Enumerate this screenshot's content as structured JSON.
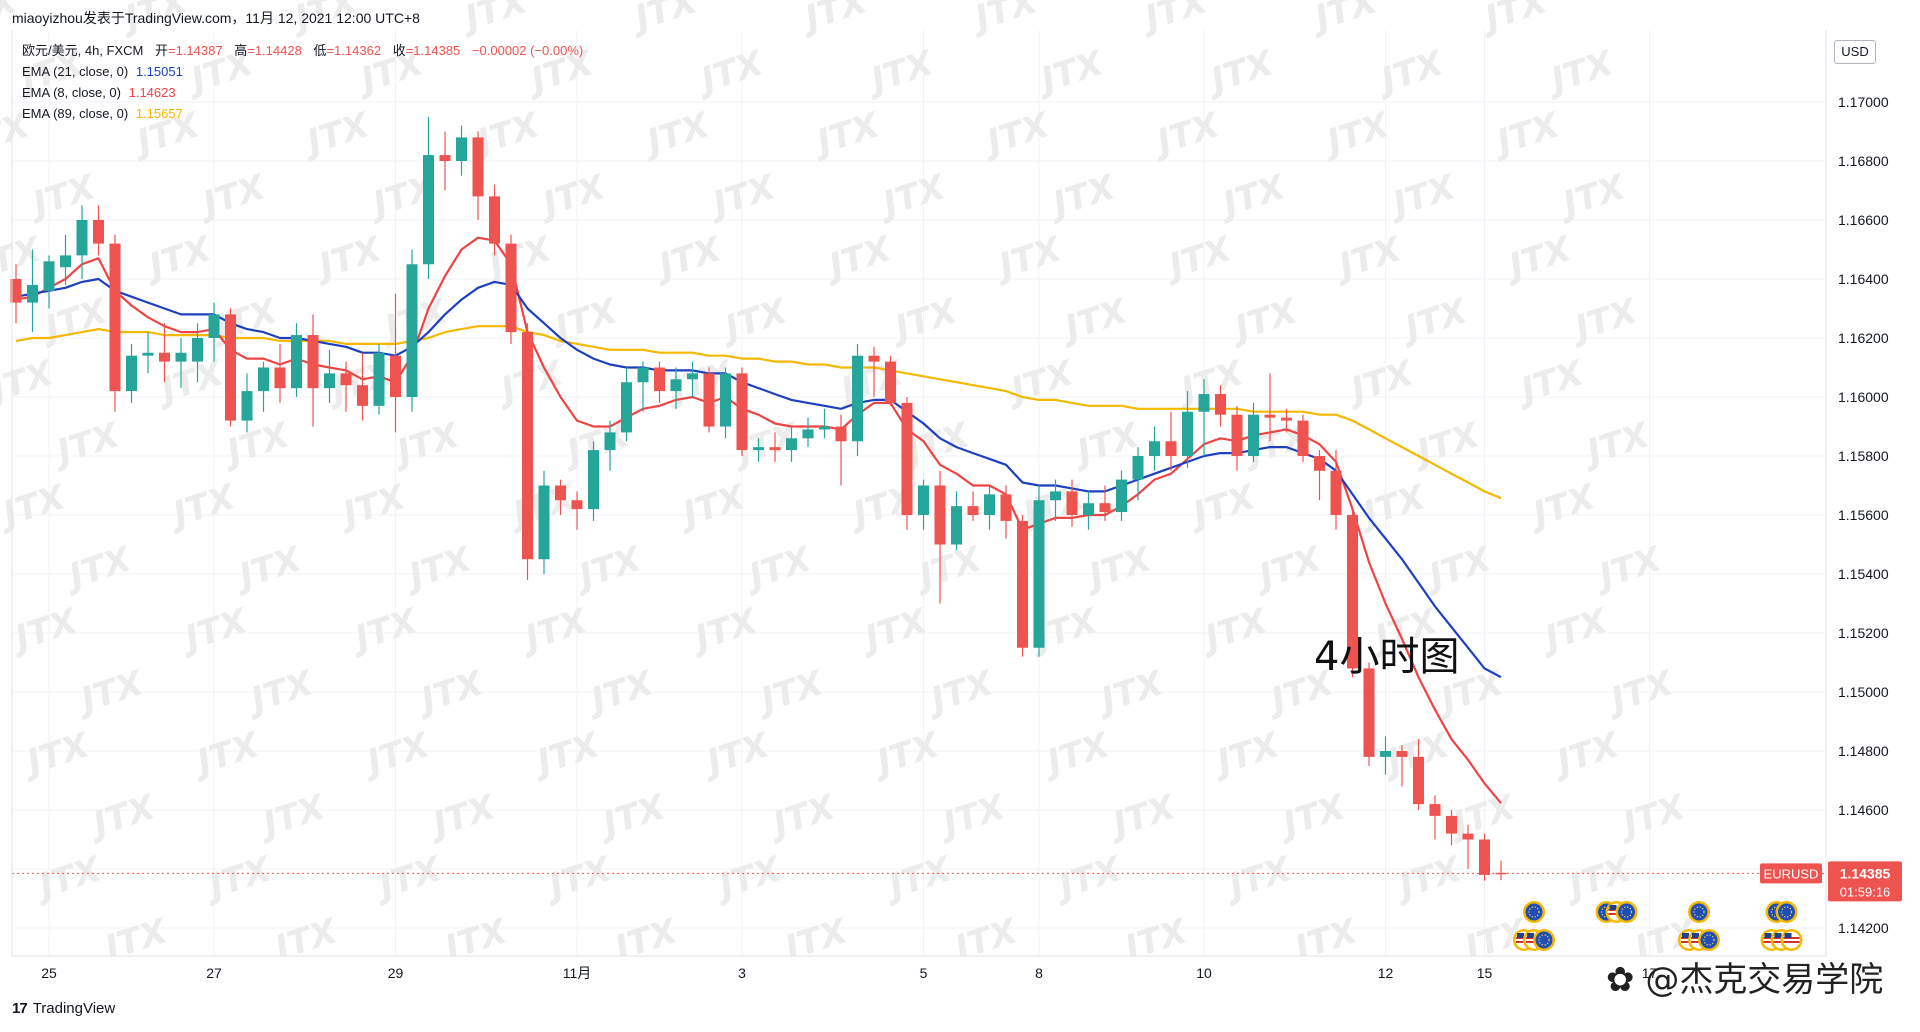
{
  "header": {
    "source_line": "miaoyizhou发表于TradingView.com，11月 12, 2021 12:00 UTC+8"
  },
  "legend": {
    "symbol_line": "欧元/美元, 4h, FXCM",
    "ohlc": [
      {
        "key": "开",
        "value": "=1.14387"
      },
      {
        "key": "高",
        "value": "=1.14428"
      },
      {
        "key": "低",
        "value": "=1.14362"
      },
      {
        "key": "收",
        "value": "=1.14385"
      }
    ],
    "change": "−0.00002 (−0.00%)",
    "ema": [
      {
        "label": "EMA (21, close, 0)",
        "value": "1.15051",
        "color": "#1e3fbf"
      },
      {
        "label": "EMA (8, close, 0)",
        "value": "1.14623",
        "color": "#ef4444"
      },
      {
        "label": "EMA (89, close, 0)",
        "value": "1.15657",
        "color": "#f5b800"
      }
    ]
  },
  "price_axis": {
    "currency": "USD",
    "current_symbol": "EURUSD",
    "current_price": "1.14385",
    "countdown": "01:59:16"
  },
  "annotation": "4小时图",
  "branding": {
    "logo_text": "TradingView",
    "weibo": "@杰克交易学院"
  },
  "watermark_text": "JTX",
  "colors": {
    "up": "#26a69a",
    "down": "#ef5350",
    "ema21": "#1e3fbf",
    "ema8": "#ef4444",
    "ema89": "#f5b800",
    "grid": "#f0f3fa",
    "price_tag": "#ef5350"
  },
  "chart_data": {
    "type": "candlestick",
    "title": "欧元/美元, 4h, FXCM",
    "ylim": [
      1.1412,
      1.17
    ],
    "y_ticks": [
      "1.17000",
      "1.16800",
      "1.16600",
      "1.16400",
      "1.16200",
      "1.16000",
      "1.15800",
      "1.15600",
      "1.15400",
      "1.15200",
      "1.15000",
      "1.14800",
      "1.14600",
      "1.14400",
      "1.14200"
    ],
    "x_ticks": [
      {
        "label": "25",
        "bar": 2
      },
      {
        "label": "27",
        "bar": 12
      },
      {
        "label": "29",
        "bar": 23
      },
      {
        "label": "11月",
        "bar": 34
      },
      {
        "label": "3",
        "bar": 44
      },
      {
        "label": "5",
        "bar": 55
      },
      {
        "label": "8",
        "bar": 62
      },
      {
        "label": "10",
        "bar": 72
      },
      {
        "label": "12",
        "bar": 83
      },
      {
        "label": "15",
        "bar": 89
      },
      {
        "label": "17",
        "bar": 99
      }
    ],
    "candles": [
      [
        1.164,
        1.1645,
        1.1625,
        1.1632
      ],
      [
        1.1632,
        1.165,
        1.1622,
        1.1638
      ],
      [
        1.1636,
        1.1648,
        1.163,
        1.1646
      ],
      [
        1.1644,
        1.1655,
        1.1638,
        1.1648
      ],
      [
        1.1648,
        1.1665,
        1.164,
        1.166
      ],
      [
        1.166,
        1.1665,
        1.1648,
        1.1652
      ],
      [
        1.1652,
        1.1655,
        1.1595,
        1.1602
      ],
      [
        1.1602,
        1.1618,
        1.1598,
        1.1614
      ],
      [
        1.1614,
        1.1622,
        1.1608,
        1.1615
      ],
      [
        1.1615,
        1.1625,
        1.1605,
        1.1612
      ],
      [
        1.1612,
        1.162,
        1.1603,
        1.1615
      ],
      [
        1.1612,
        1.1625,
        1.1605,
        1.162
      ],
      [
        1.162,
        1.1632,
        1.1612,
        1.1628
      ],
      [
        1.1628,
        1.163,
        1.159,
        1.1592
      ],
      [
        1.1592,
        1.1608,
        1.1588,
        1.1602
      ],
      [
        1.1602,
        1.1612,
        1.1595,
        1.161
      ],
      [
        1.161,
        1.1618,
        1.1598,
        1.1603
      ],
      [
        1.1603,
        1.1625,
        1.16,
        1.1621
      ],
      [
        1.1621,
        1.1628,
        1.159,
        1.1603
      ],
      [
        1.1603,
        1.1616,
        1.1598,
        1.1608
      ],
      [
        1.1608,
        1.1612,
        1.1595,
        1.1604
      ],
      [
        1.1604,
        1.1615,
        1.1592,
        1.1597
      ],
      [
        1.1597,
        1.1618,
        1.1594,
        1.1615
      ],
      [
        1.1614,
        1.1635,
        1.1588,
        1.16
      ],
      [
        1.16,
        1.165,
        1.1595,
        1.1645
      ],
      [
        1.1645,
        1.1695,
        1.164,
        1.1682
      ],
      [
        1.1682,
        1.169,
        1.167,
        1.168
      ],
      [
        1.168,
        1.1692,
        1.1675,
        1.1688
      ],
      [
        1.1688,
        1.169,
        1.166,
        1.1668
      ],
      [
        1.1668,
        1.1672,
        1.1648,
        1.1652
      ],
      [
        1.1652,
        1.1655,
        1.1618,
        1.1622
      ],
      [
        1.1622,
        1.1625,
        1.1538,
        1.1545
      ],
      [
        1.1545,
        1.1575,
        1.154,
        1.157
      ],
      [
        1.157,
        1.1572,
        1.156,
        1.1565
      ],
      [
        1.1565,
        1.1568,
        1.1555,
        1.1562
      ],
      [
        1.1562,
        1.1585,
        1.1558,
        1.1582
      ],
      [
        1.1582,
        1.1592,
        1.1575,
        1.1588
      ],
      [
        1.1588,
        1.161,
        1.1585,
        1.1605
      ],
      [
        1.1605,
        1.1612,
        1.1595,
        1.161
      ],
      [
        1.161,
        1.1612,
        1.1598,
        1.1602
      ],
      [
        1.1602,
        1.161,
        1.1596,
        1.1606
      ],
      [
        1.1606,
        1.1612,
        1.16,
        1.1608
      ],
      [
        1.1608,
        1.161,
        1.1588,
        1.159
      ],
      [
        1.159,
        1.161,
        1.1586,
        1.1608
      ],
      [
        1.1608,
        1.161,
        1.158,
        1.1582
      ],
      [
        1.1582,
        1.1586,
        1.1578,
        1.1583
      ],
      [
        1.1583,
        1.1588,
        1.1578,
        1.1582
      ],
      [
        1.1582,
        1.159,
        1.1578,
        1.1586
      ],
      [
        1.1586,
        1.1593,
        1.1583,
        1.1589
      ],
      [
        1.1589,
        1.1596,
        1.1586,
        1.159
      ],
      [
        1.159,
        1.1594,
        1.157,
        1.1585
      ],
      [
        1.1585,
        1.1618,
        1.158,
        1.1614
      ],
      [
        1.1614,
        1.1617,
        1.16,
        1.1612
      ],
      [
        1.1612,
        1.1614,
        1.1597,
        1.1598
      ],
      [
        1.1598,
        1.16,
        1.1555,
        1.156
      ],
      [
        1.156,
        1.1572,
        1.1555,
        1.157
      ],
      [
        1.157,
        1.1575,
        1.153,
        1.155
      ],
      [
        1.155,
        1.1568,
        1.1548,
        1.1563
      ],
      [
        1.1563,
        1.1568,
        1.1558,
        1.156
      ],
      [
        1.156,
        1.157,
        1.1555,
        1.1567
      ],
      [
        1.1567,
        1.157,
        1.1552,
        1.1558
      ],
      [
        1.1558,
        1.156,
        1.1512,
        1.1515
      ],
      [
        1.1515,
        1.157,
        1.1512,
        1.1565
      ],
      [
        1.1565,
        1.1572,
        1.1558,
        1.1568
      ],
      [
        1.1568,
        1.1572,
        1.1556,
        1.156
      ],
      [
        1.156,
        1.1568,
        1.1555,
        1.1564
      ],
      [
        1.1564,
        1.157,
        1.1558,
        1.1561
      ],
      [
        1.1561,
        1.1575,
        1.1558,
        1.1572
      ],
      [
        1.1572,
        1.1583,
        1.1565,
        1.158
      ],
      [
        1.158,
        1.159,
        1.1575,
        1.1585
      ],
      [
        1.1585,
        1.1595,
        1.1575,
        1.158
      ],
      [
        1.158,
        1.1602,
        1.1576,
        1.1595
      ],
      [
        1.1595,
        1.1606,
        1.158,
        1.1601
      ],
      [
        1.1601,
        1.1604,
        1.159,
        1.1594
      ],
      [
        1.1594,
        1.1597,
        1.1575,
        1.158
      ],
      [
        1.158,
        1.1598,
        1.1578,
        1.1594
      ],
      [
        1.1594,
        1.1608,
        1.1585,
        1.1593
      ],
      [
        1.1593,
        1.1596,
        1.1588,
        1.1592
      ],
      [
        1.1592,
        1.1594,
        1.1578,
        1.158
      ],
      [
        1.158,
        1.1582,
        1.1565,
        1.1575
      ],
      [
        1.1575,
        1.1582,
        1.1555,
        1.156
      ],
      [
        1.156,
        1.1562,
        1.1505,
        1.1508
      ],
      [
        1.1508,
        1.151,
        1.1475,
        1.1478
      ],
      [
        1.1478,
        1.1485,
        1.1472,
        1.148
      ],
      [
        1.148,
        1.1482,
        1.1468,
        1.1478
      ],
      [
        1.1478,
        1.1484,
        1.146,
        1.1462
      ],
      [
        1.1462,
        1.1465,
        1.145,
        1.1458
      ],
      [
        1.1458,
        1.146,
        1.1448,
        1.1452
      ],
      [
        1.1452,
        1.1455,
        1.144,
        1.145
      ],
      [
        1.145,
        1.1452,
        1.1436,
        1.1438
      ],
      [
        1.14387,
        1.14428,
        1.14362,
        1.14385
      ]
    ],
    "series": [
      {
        "name": "EMA (21, close, 0)",
        "color": "#1e3fbf",
        "start_bar": 0,
        "values": [
          1.1634,
          1.1635,
          1.1636,
          1.1637,
          1.1639,
          1.164,
          1.1636,
          1.1634,
          1.1632,
          1.163,
          1.1628,
          1.1628,
          1.1628,
          1.1625,
          1.1623,
          1.1622,
          1.162,
          1.162,
          1.1619,
          1.1618,
          1.1617,
          1.1615,
          1.1615,
          1.1614,
          1.1617,
          1.1622,
          1.1628,
          1.1633,
          1.1637,
          1.1639,
          1.1638,
          1.163,
          1.1625,
          1.162,
          1.1616,
          1.1613,
          1.1611,
          1.161,
          1.161,
          1.1609,
          1.1609,
          1.1609,
          1.1608,
          1.1608,
          1.1605,
          1.1603,
          1.1601,
          1.1599,
          1.1598,
          1.1597,
          1.1596,
          1.1598,
          1.1599,
          1.1599,
          1.1595,
          1.1591,
          1.1586,
          1.1583,
          1.1581,
          1.1579,
          1.1577,
          1.1571,
          1.157,
          1.157,
          1.1569,
          1.1568,
          1.1568,
          1.157,
          1.1572,
          1.1574,
          1.1576,
          1.1578,
          1.158,
          1.1581,
          1.1581,
          1.1582,
          1.1583,
          1.1583,
          1.1581,
          1.1579,
          1.1575,
          1.1567,
          1.1559,
          1.1552,
          1.1545,
          1.1537,
          1.1529,
          1.1522,
          1.1515,
          1.1508,
          1.1505
        ]
      },
      {
        "name": "EMA (8, close, 0)",
        "color": "#ef4444",
        "start_bar": 0,
        "values": [
          1.1633,
          1.1634,
          1.1637,
          1.164,
          1.1645,
          1.1647,
          1.1636,
          1.1631,
          1.1627,
          1.1624,
          1.1622,
          1.1622,
          1.1623,
          1.1616,
          1.1613,
          1.1613,
          1.1611,
          1.1613,
          1.1611,
          1.161,
          1.1609,
          1.1606,
          1.1607,
          1.1605,
          1.1614,
          1.163,
          1.1641,
          1.165,
          1.1654,
          1.1653,
          1.1645,
          1.1622,
          1.161,
          1.16,
          1.1592,
          1.159,
          1.159,
          1.1593,
          1.1596,
          1.1597,
          1.1599,
          1.16,
          1.1598,
          1.16,
          1.1596,
          1.1594,
          1.1591,
          1.159,
          1.159,
          1.159,
          1.1589,
          1.1594,
          1.1598,
          1.1598,
          1.1589,
          1.1585,
          1.1577,
          1.1574,
          1.157,
          1.157,
          1.1567,
          1.1555,
          1.1557,
          1.1559,
          1.1559,
          1.156,
          1.156,
          1.1563,
          1.1567,
          1.1572,
          1.1574,
          1.1579,
          1.1584,
          1.1586,
          1.1585,
          1.1587,
          1.1588,
          1.1589,
          1.1587,
          1.1584,
          1.1578,
          1.1562,
          1.1544,
          1.153,
          1.1518,
          1.1505,
          1.1494,
          1.1484,
          1.1477,
          1.1469,
          1.14623
        ]
      },
      {
        "name": "EMA (89, close, 0)",
        "color": "#f5b800",
        "start_bar": 0,
        "values": [
          1.1619,
          1.162,
          1.162,
          1.1621,
          1.1622,
          1.1623,
          1.1622,
          1.1622,
          1.1622,
          1.1621,
          1.1621,
          1.1621,
          1.1621,
          1.162,
          1.162,
          1.162,
          1.1619,
          1.1619,
          1.1619,
          1.1619,
          1.1618,
          1.1618,
          1.1618,
          1.1618,
          1.1619,
          1.162,
          1.1622,
          1.1623,
          1.1624,
          1.1624,
          1.1624,
          1.1622,
          1.1621,
          1.1619,
          1.1618,
          1.1617,
          1.1616,
          1.1616,
          1.1616,
          1.1615,
          1.1615,
          1.1615,
          1.1614,
          1.1614,
          1.1613,
          1.1613,
          1.1612,
          1.1612,
          1.1611,
          1.1611,
          1.161,
          1.161,
          1.161,
          1.1609,
          1.1608,
          1.1607,
          1.1606,
          1.1605,
          1.1604,
          1.1603,
          1.1602,
          1.16,
          1.1599,
          1.1599,
          1.1598,
          1.1597,
          1.1597,
          1.1597,
          1.1596,
          1.1596,
          1.1596,
          1.1596,
          1.1596,
          1.1596,
          1.1596,
          1.1595,
          1.1595,
          1.1595,
          1.1595,
          1.1594,
          1.1594,
          1.1592,
          1.1589,
          1.1586,
          1.1583,
          1.158,
          1.1577,
          1.1574,
          1.1571,
          1.1568,
          1.15657
        ]
      }
    ],
    "event_markers": [
      {
        "bar": 92,
        "icons": [
          "eu"
        ]
      },
      {
        "bar": 92,
        "icons": [
          "us",
          "us",
          "eu"
        ]
      },
      {
        "bar": 97,
        "icons": [
          "eu",
          "us",
          "eu"
        ]
      },
      {
        "bar": 102,
        "icons": [
          "eu"
        ]
      },
      {
        "bar": 102,
        "icons": [
          "us",
          "us",
          "eu"
        ]
      },
      {
        "bar": 107,
        "icons": [
          "eu",
          "eu"
        ]
      },
      {
        "bar": 107,
        "icons": [
          "us",
          "us",
          "us"
        ]
      }
    ]
  }
}
